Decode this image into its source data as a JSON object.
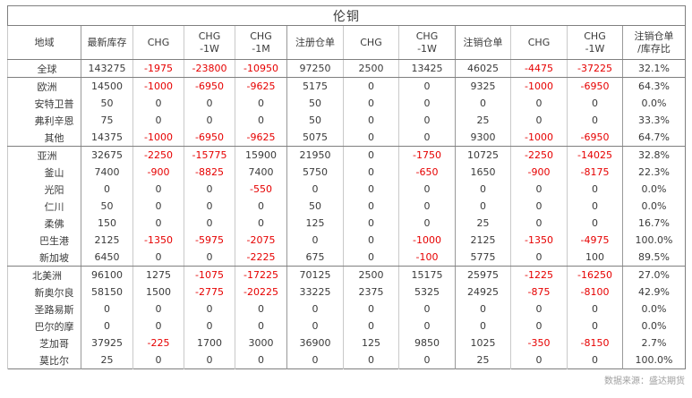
{
  "title": "伦铜",
  "footer": {
    "source_label": "数据来源：盛达期货"
  },
  "colors": {
    "negative_value": "#e60000",
    "text": "#3a3a3a",
    "border_dark": "#7f7f7f",
    "border_light": "#c9c9c9",
    "source_text": "#a0a0a0"
  },
  "chart_data": {
    "type": "table",
    "title": "伦铜",
    "columns": [
      "地域",
      "最新库存",
      "CHG",
      "CHG -1W",
      "CHG -1M",
      "注册仓单",
      "CHG",
      "CHG -1W",
      "注销仓单",
      "CHG",
      "CHG -1W",
      "注销仓单/库存比"
    ],
    "header": [
      [
        "地域"
      ],
      [
        "最新库存"
      ],
      [
        "CHG"
      ],
      [
        "CHG",
        "-1W"
      ],
      [
        "CHG",
        "-1M"
      ],
      [
        "注册仓单"
      ],
      [
        "CHG"
      ],
      [
        "CHG",
        "-1W"
      ],
      [
        "注销仓单"
      ],
      [
        "CHG"
      ],
      [
        "CHG",
        "-1W"
      ],
      [
        "注销仓单",
        "/库存比"
      ]
    ],
    "rows": [
      {
        "name": "全球",
        "indent": false,
        "section_end": true,
        "values": [
          "143275",
          "-1975",
          "-23800",
          "-10950",
          "97250",
          "2500",
          "13425",
          "46025",
          "-4475",
          "-37225",
          "32.1%"
        ]
      },
      {
        "name": "欧洲",
        "indent": false,
        "section_end": false,
        "values": [
          "14500",
          "-1000",
          "-6950",
          "-9625",
          "5175",
          "0",
          "0",
          "9325",
          "-1000",
          "-6950",
          "64.3%"
        ]
      },
      {
        "name": "安特卫普",
        "indent": true,
        "section_end": false,
        "values": [
          "50",
          "0",
          "0",
          "0",
          "50",
          "0",
          "0",
          "0",
          "0",
          "0",
          "0.0%"
        ]
      },
      {
        "name": "弗利辛恩",
        "indent": true,
        "section_end": false,
        "values": [
          "75",
          "0",
          "0",
          "0",
          "50",
          "0",
          "0",
          "25",
          "0",
          "0",
          "33.3%"
        ]
      },
      {
        "name": "其他",
        "indent": true,
        "section_end": true,
        "values": [
          "14375",
          "-1000",
          "-6950",
          "-9625",
          "5075",
          "0",
          "0",
          "9300",
          "-1000",
          "-6950",
          "64.7%"
        ]
      },
      {
        "name": "亚洲",
        "indent": false,
        "section_end": false,
        "values": [
          "32675",
          "-2250",
          "-15775",
          "15900",
          "21950",
          "0",
          "-1750",
          "10725",
          "-2250",
          "-14025",
          "32.8%"
        ]
      },
      {
        "name": "釜山",
        "indent": true,
        "section_end": false,
        "values": [
          "7400",
          "-900",
          "-8825",
          "7400",
          "5750",
          "0",
          "-650",
          "1650",
          "-900",
          "-8175",
          "22.3%"
        ]
      },
      {
        "name": "光阳",
        "indent": true,
        "section_end": false,
        "values": [
          "0",
          "0",
          "0",
          "-550",
          "0",
          "0",
          "0",
          "0",
          "0",
          "0",
          "0.0%"
        ]
      },
      {
        "name": "仁川",
        "indent": true,
        "section_end": false,
        "values": [
          "50",
          "0",
          "0",
          "0",
          "50",
          "0",
          "0",
          "0",
          "0",
          "0",
          "0.0%"
        ]
      },
      {
        "name": "柔佛",
        "indent": true,
        "section_end": false,
        "values": [
          "150",
          "0",
          "0",
          "0",
          "125",
          "0",
          "0",
          "25",
          "0",
          "0",
          "16.7%"
        ]
      },
      {
        "name": "巴生港",
        "indent": true,
        "section_end": false,
        "values": [
          "2125",
          "-1350",
          "-5975",
          "-2075",
          "0",
          "0",
          "-1000",
          "2125",
          "-1350",
          "-4975",
          "100.0%"
        ]
      },
      {
        "name": "新加坡",
        "indent": true,
        "section_end": true,
        "values": [
          "6450",
          "0",
          "0",
          "-2225",
          "675",
          "0",
          "-100",
          "5775",
          "0",
          "100",
          "89.5%"
        ]
      },
      {
        "name": "北美洲",
        "indent": false,
        "section_end": false,
        "values": [
          "96100",
          "1275",
          "-1075",
          "-17225",
          "70125",
          "2500",
          "15175",
          "25975",
          "-1225",
          "-16250",
          "27.0%"
        ]
      },
      {
        "name": "新奥尔良",
        "indent": true,
        "section_end": false,
        "values": [
          "58150",
          "1500",
          "-2775",
          "-20225",
          "33225",
          "2375",
          "5325",
          "24925",
          "-875",
          "-8100",
          "42.9%"
        ]
      },
      {
        "name": "圣路易斯",
        "indent": true,
        "section_end": false,
        "values": [
          "0",
          "0",
          "0",
          "0",
          "0",
          "0",
          "0",
          "0",
          "0",
          "0",
          "0.0%"
        ]
      },
      {
        "name": "巴尔的摩",
        "indent": true,
        "section_end": false,
        "values": [
          "0",
          "0",
          "0",
          "0",
          "0",
          "0",
          "0",
          "0",
          "0",
          "0",
          "0.0%"
        ]
      },
      {
        "name": "芝加哥",
        "indent": true,
        "section_end": false,
        "values": [
          "37925",
          "-225",
          "1700",
          "3000",
          "36900",
          "125",
          "9850",
          "1025",
          "-350",
          "-8150",
          "2.7%"
        ]
      },
      {
        "name": "莫比尔",
        "indent": true,
        "section_end": false,
        "values": [
          "25",
          "0",
          "0",
          "0",
          "0",
          "0",
          "0",
          "25",
          "0",
          "0",
          "100.0%"
        ]
      }
    ]
  }
}
